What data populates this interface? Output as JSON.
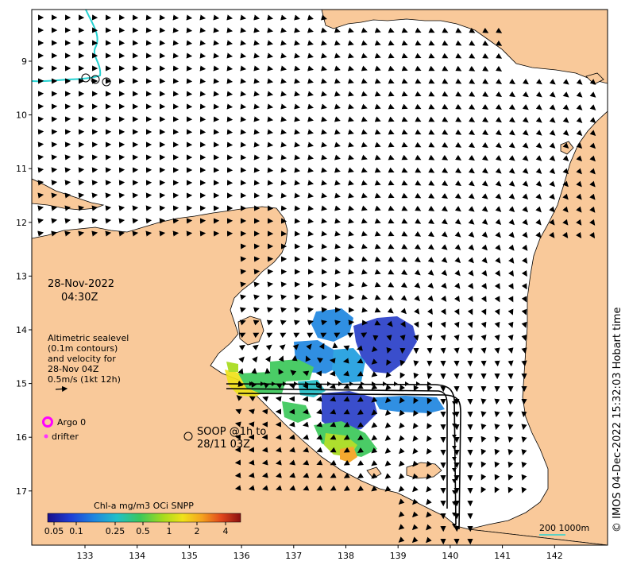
{
  "map": {
    "date": "28-Nov-2022",
    "time": "04:30Z",
    "altimetry_lines": [
      "Altimetric sealevel",
      "(0.1m contours)",
      "and velocity for",
      "28-Nov 04Z",
      "0.5m/s (1kt 12h)"
    ],
    "legend": {
      "argo": "Argo 0",
      "drifter": "drifter"
    },
    "soop_lines": [
      "SOOP @1h to",
      "28/11 03Z"
    ],
    "colorbar": {
      "title": "Chl-a mg/m3 OCi SNPP",
      "ticks": [
        "0.05",
        "0.1",
        "0.25",
        "0.5",
        "1",
        "2",
        "4"
      ]
    },
    "scale_label": "200  1000m",
    "credit": "© IMOS 04-Dec-2022 15:32:03 Hobart time",
    "lon_ticks": [
      "133",
      "134",
      "135",
      "136",
      "137",
      "138",
      "139",
      "140",
      "141",
      "142"
    ],
    "lat_ticks": [
      "9",
      "10",
      "11",
      "12",
      "13",
      "14",
      "15",
      "16",
      "17"
    ]
  },
  "colors": {
    "land": "#f9c99a",
    "sea": "#ffffff",
    "argo": "#ff00ff",
    "drifter": "#ff33ff",
    "contour": "#25d2d2",
    "ship_track": "#000000"
  }
}
